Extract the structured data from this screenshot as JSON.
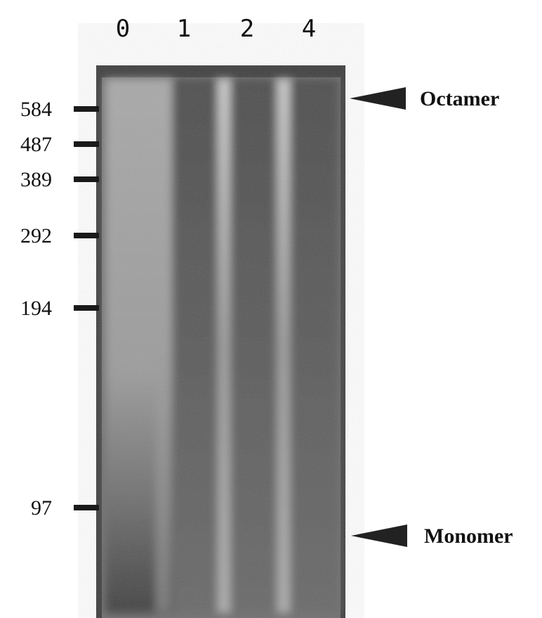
{
  "lanes": [
    "0",
    "1",
    "2",
    "4"
  ],
  "markers": [
    "584",
    "487",
    "389",
    "292",
    "194",
    "97"
  ],
  "bands": [
    "Octamer",
    "Monomer"
  ]
}
